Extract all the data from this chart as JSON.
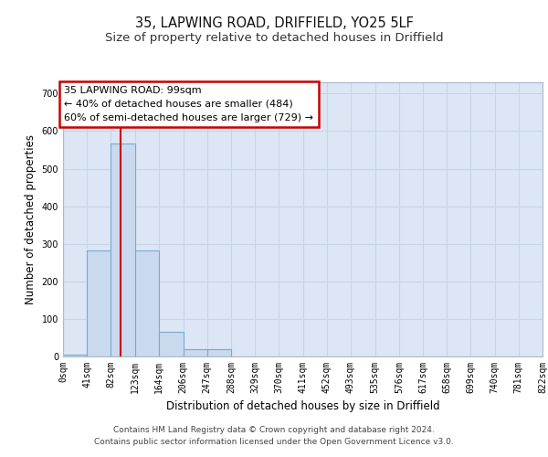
{
  "title_line1": "35, LAPWING ROAD, DRIFFIELD, YO25 5LF",
  "title_line2": "Size of property relative to detached houses in Driffield",
  "xlabel": "Distribution of detached houses by size in Driffield",
  "ylabel": "Number of detached properties",
  "bin_edges": [
    0,
    41,
    82,
    123,
    164,
    206,
    247,
    288,
    329,
    370,
    411,
    452,
    493,
    535,
    576,
    617,
    658,
    699,
    740,
    781,
    822
  ],
  "bar_heights": [
    5,
    282,
    567,
    282,
    65,
    20,
    20,
    0,
    0,
    0,
    0,
    0,
    0,
    0,
    0,
    0,
    0,
    0,
    0,
    0
  ],
  "bar_facecolor": "#c9d9ee",
  "bar_edgecolor": "#7aaad0",
  "grid_color": "#c8d4e8",
  "background_color": "#dce6f5",
  "annotation_text": "35 LAPWING ROAD: 99sqm\n← 40% of detached houses are smaller (484)\n60% of semi-detached houses are larger (729) →",
  "vline_x": 99,
  "vline_color": "#cc0000",
  "ylim": [
    0,
    730
  ],
  "xlim": [
    0,
    822
  ],
  "tick_labels": [
    "0sqm",
    "41sqm",
    "82sqm",
    "123sqm",
    "164sqm",
    "206sqm",
    "247sqm",
    "288sqm",
    "329sqm",
    "370sqm",
    "411sqm",
    "452sqm",
    "493sqm",
    "535sqm",
    "576sqm",
    "617sqm",
    "658sqm",
    "699sqm",
    "740sqm",
    "781sqm",
    "822sqm"
  ],
  "footer_line1": "Contains HM Land Registry data © Crown copyright and database right 2024.",
  "footer_line2": "Contains public sector information licensed under the Open Government Licence v3.0.",
  "title_fontsize": 10.5,
  "subtitle_fontsize": 9.5,
  "axis_label_fontsize": 8.5,
  "tick_fontsize": 7,
  "annotation_fontsize": 8,
  "footer_fontsize": 6.5
}
